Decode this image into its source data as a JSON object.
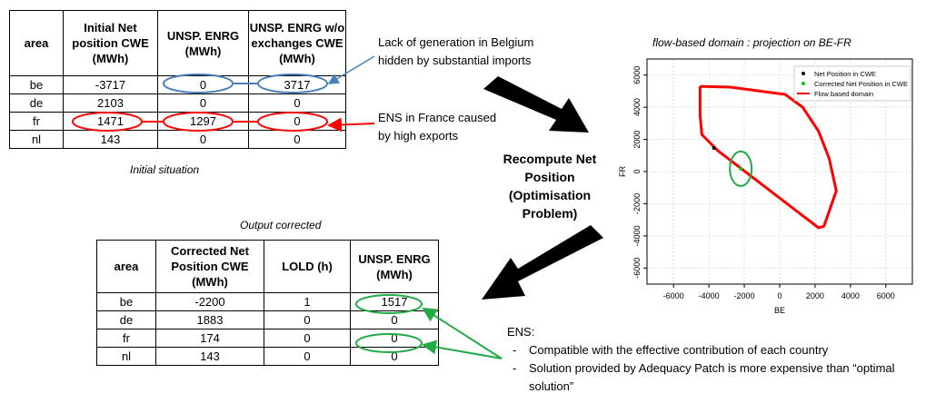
{
  "table1": {
    "headers": [
      "area",
      "Initial Net position CWE (MWh)",
      "UNSP. ENRG (MWh)",
      "UNSP. ENRG w/o  exchanges CWE (MWh)"
    ],
    "rows": [
      [
        "be",
        "-3717",
        "0",
        "3717"
      ],
      [
        "de",
        "2103",
        "0",
        "0"
      ],
      [
        "fr",
        "1471",
        "1297",
        "0"
      ],
      [
        "nl",
        "143",
        "0",
        "0"
      ]
    ],
    "caption": "Initial situation"
  },
  "note_belgium": [
    "Lack of generation in Belgium",
    "hidden by substantial imports"
  ],
  "note_france": [
    "ENS in France caused",
    "by high exports"
  ],
  "recompute": [
    "Recompute Net",
    "Position",
    "(Optimisation",
    "Problem)"
  ],
  "table2": {
    "caption": "Output corrected",
    "headers": [
      "area",
      "Corrected Net Position CWE (MWh)",
      "LOLD (h)",
      "UNSP. ENRG (MWh)"
    ],
    "rows": [
      [
        "be",
        "-2200",
        "1",
        "1517"
      ],
      [
        "de",
        "1883",
        "0",
        "0"
      ],
      [
        "fr",
        "174",
        "0",
        "0"
      ],
      [
        "nl",
        "143",
        "0",
        "0"
      ]
    ]
  },
  "ens": {
    "title": "ENS:",
    "items": [
      "Compatible with the effective contribution of each country",
      "Solution provided by Adequacy Patch is more expensive than “optimal solution”"
    ]
  },
  "chart_data": {
    "type": "scatter",
    "title": "flow-based domain : projection on  BE-FR",
    "xlabel": "BE",
    "ylabel": "FR",
    "xlim": [
      -7500,
      7500
    ],
    "ylim": [
      -7000,
      7000
    ],
    "xticks": [
      -6000,
      -4000,
      -2000,
      0,
      2000,
      4000,
      6000
    ],
    "yticks": [
      -6000,
      -4000,
      -2000,
      0,
      2000,
      4000,
      6000
    ],
    "grid": true,
    "legend_position": "top-right",
    "series": [
      {
        "name": "Net Position in CWE",
        "color": "#000000",
        "kind": "point",
        "points": [
          [
            -3717,
            1471
          ]
        ]
      },
      {
        "name": "Corrected Net Position in CWE",
        "color": "#00cc00",
        "kind": "point",
        "points": [
          [
            -2200,
            174
          ]
        ]
      },
      {
        "name": "Flow based domain",
        "color": "#ff0000",
        "kind": "line",
        "points": [
          [
            -4500,
            5300
          ],
          [
            -2800,
            5250
          ],
          [
            300,
            4800
          ],
          [
            1300,
            4000
          ],
          [
            2200,
            2500
          ],
          [
            2800,
            800
          ],
          [
            3200,
            -1200
          ],
          [
            2500,
            -3400
          ],
          [
            2200,
            -3500
          ],
          [
            -1600,
            -300
          ],
          [
            -3500,
            1300
          ],
          [
            -4400,
            2300
          ],
          [
            -4500,
            3500
          ],
          [
            -4500,
            5300
          ]
        ]
      }
    ]
  },
  "colors": {
    "blue_ellipse": "#4a7ebb",
    "red": "#ff0000",
    "green": "#22aa44",
    "arrow": "#000000"
  }
}
